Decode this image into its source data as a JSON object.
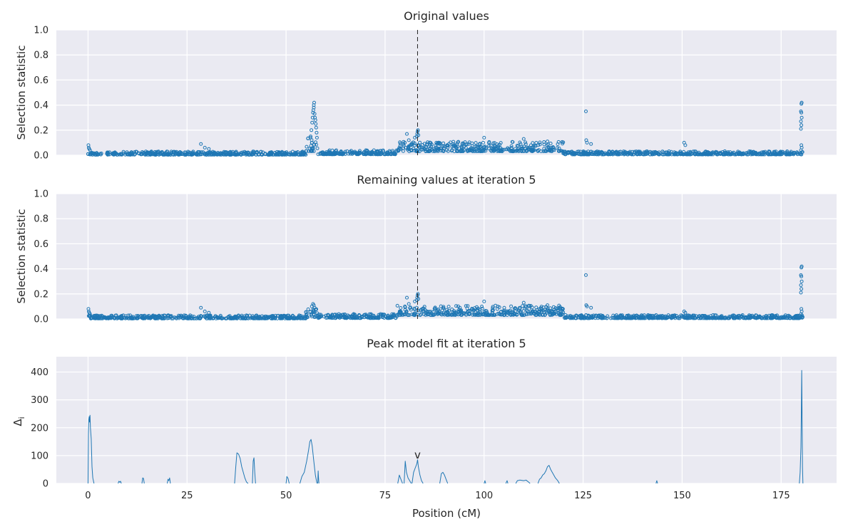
{
  "chart_data": [
    {
      "type": "scatter",
      "title": "Original values",
      "xlabel": "",
      "ylabel": "Selection statistic",
      "xlim": [
        -8,
        189
      ],
      "ylim": [
        0,
        1.0
      ],
      "yticks": [
        0.0,
        0.2,
        0.4,
        0.6,
        0.8,
        1.0
      ],
      "ytick_labels": [
        "0.0",
        "0.2",
        "0.4",
        "0.6",
        "0.8",
        "1.0"
      ],
      "xticks": [
        0,
        25,
        50,
        75,
        100,
        125,
        150,
        175
      ],
      "grid": true,
      "marker": "open-circle",
      "vline_x": 83.2,
      "baseline_segments": [
        {
          "x": [
            0,
            55
          ],
          "level": 0.01,
          "spread": 0.012
        },
        {
          "x": [
            55,
            58
          ],
          "level": 0.06,
          "spread": 0.05
        },
        {
          "x": [
            58,
            78
          ],
          "level": 0.015,
          "spread": 0.015
        },
        {
          "x": [
            78,
            120
          ],
          "level": 0.05,
          "spread": 0.035
        },
        {
          "x": [
            120,
            180.5
          ],
          "level": 0.012,
          "spread": 0.012
        }
      ],
      "highlights": [
        [
          0.1,
          0.08
        ],
        [
          0.2,
          0.06
        ],
        [
          0.3,
          0.05
        ],
        [
          0.5,
          0.04
        ],
        [
          28.5,
          0.09
        ],
        [
          29.5,
          0.06
        ],
        [
          30.5,
          0.05
        ],
        [
          56.2,
          0.15
        ],
        [
          56.4,
          0.2
        ],
        [
          56.6,
          0.26
        ],
        [
          56.7,
          0.3
        ],
        [
          56.8,
          0.34
        ],
        [
          56.9,
          0.36
        ],
        [
          57.0,
          0.38
        ],
        [
          57.0,
          0.4
        ],
        [
          57.1,
          0.42
        ],
        [
          57.2,
          0.33
        ],
        [
          57.3,
          0.3
        ],
        [
          57.4,
          0.28
        ],
        [
          57.5,
          0.25
        ],
        [
          57.6,
          0.22
        ],
        [
          57.7,
          0.18
        ],
        [
          57.8,
          0.14
        ],
        [
          80.0,
          0.1
        ],
        [
          80.5,
          0.17
        ],
        [
          81.0,
          0.12
        ],
        [
          82.5,
          0.14
        ],
        [
          83.0,
          0.15
        ],
        [
          83.1,
          0.17
        ],
        [
          83.2,
          0.19
        ],
        [
          83.3,
          0.2
        ],
        [
          83.4,
          0.16
        ],
        [
          100.0,
          0.14
        ],
        [
          110.0,
          0.13
        ],
        [
          116.0,
          0.11
        ],
        [
          125.7,
          0.35
        ],
        [
          125.8,
          0.12
        ],
        [
          126.0,
          0.1
        ],
        [
          127.0,
          0.09
        ],
        [
          150.5,
          0.1
        ],
        [
          150.8,
          0.08
        ],
        [
          180.1,
          0.41
        ],
        [
          180.2,
          0.42
        ],
        [
          180.0,
          0.35
        ],
        [
          180.1,
          0.34
        ],
        [
          180.2,
          0.3
        ],
        [
          180.0,
          0.27
        ],
        [
          180.1,
          0.24
        ],
        [
          180.0,
          0.21
        ],
        [
          180.1,
          0.08
        ],
        [
          180.2,
          0.06
        ],
        [
          180.0,
          0.04
        ]
      ]
    },
    {
      "type": "scatter",
      "title": "Remaining values at iteration 5",
      "xlabel": "",
      "ylabel": "Selection statistic",
      "xlim": [
        -8,
        189
      ],
      "ylim": [
        0,
        1.0
      ],
      "yticks": [
        0.0,
        0.2,
        0.4,
        0.6,
        0.8,
        1.0
      ],
      "ytick_labels": [
        "0.0",
        "0.2",
        "0.4",
        "0.6",
        "0.8",
        "1.0"
      ],
      "xticks": [
        0,
        25,
        50,
        75,
        100,
        125,
        150,
        175
      ],
      "grid": true,
      "marker": "open-circle",
      "vline_x": 83.2,
      "baseline_segments": [
        {
          "x": [
            0,
            55
          ],
          "level": 0.01,
          "spread": 0.012
        },
        {
          "x": [
            55,
            58
          ],
          "level": 0.03,
          "spread": 0.03
        },
        {
          "x": [
            58,
            78
          ],
          "level": 0.015,
          "spread": 0.015
        },
        {
          "x": [
            78,
            120
          ],
          "level": 0.05,
          "spread": 0.035
        },
        {
          "x": [
            120,
            180.5
          ],
          "level": 0.012,
          "spread": 0.012
        }
      ],
      "highlights": [
        [
          0.1,
          0.08
        ],
        [
          0.2,
          0.06
        ],
        [
          0.3,
          0.05
        ],
        [
          0.5,
          0.04
        ],
        [
          28.5,
          0.09
        ],
        [
          29.5,
          0.06
        ],
        [
          30.5,
          0.05
        ],
        [
          56.5,
          0.1
        ],
        [
          56.8,
          0.12
        ],
        [
          57.0,
          0.11
        ],
        [
          57.2,
          0.09
        ],
        [
          80.0,
          0.1
        ],
        [
          80.5,
          0.17
        ],
        [
          81.0,
          0.12
        ],
        [
          82.5,
          0.14
        ],
        [
          83.0,
          0.15
        ],
        [
          83.1,
          0.17
        ],
        [
          83.2,
          0.19
        ],
        [
          83.3,
          0.2
        ],
        [
          83.4,
          0.16
        ],
        [
          100.0,
          0.14
        ],
        [
          110.0,
          0.13
        ],
        [
          116.0,
          0.11
        ],
        [
          125.7,
          0.35
        ],
        [
          125.8,
          0.11
        ],
        [
          126.0,
          0.1
        ],
        [
          127.0,
          0.09
        ],
        [
          150.5,
          0.06
        ],
        [
          150.8,
          0.05
        ],
        [
          180.1,
          0.41
        ],
        [
          180.2,
          0.42
        ],
        [
          180.0,
          0.35
        ],
        [
          180.1,
          0.34
        ],
        [
          180.2,
          0.3
        ],
        [
          180.0,
          0.27
        ],
        [
          180.1,
          0.24
        ],
        [
          180.0,
          0.21
        ],
        [
          180.1,
          0.08
        ],
        [
          180.2,
          0.06
        ],
        [
          180.0,
          0.04
        ]
      ]
    },
    {
      "type": "line",
      "title": "Peak model fit at iteration 5",
      "xlabel": "Position (cM)",
      "ylabel": "Δi",
      "ylabel_main": "Δ",
      "ylabel_sub": "i",
      "xlim": [
        -8,
        189
      ],
      "ylim": [
        0,
        455
      ],
      "yticks": [
        0,
        100,
        200,
        300,
        400
      ],
      "ytick_labels": [
        "0",
        "100",
        "200",
        "300",
        "400"
      ],
      "xticks": [
        0,
        25,
        50,
        75,
        100,
        125,
        150,
        175
      ],
      "xtick_labels": [
        "0",
        "25",
        "50",
        "75",
        "100",
        "125",
        "150",
        "175"
      ],
      "grid": true,
      "marker_text": "v",
      "marker_x": 83.2,
      "marker_y": 100,
      "segments": [
        [
          [
            0.0,
            0
          ],
          [
            0.1,
            180
          ],
          [
            0.2,
            230
          ],
          [
            0.3,
            240
          ],
          [
            0.4,
            220
          ],
          [
            0.5,
            245
          ],
          [
            0.6,
            200
          ],
          [
            0.8,
            160
          ],
          [
            1.0,
            60
          ],
          [
            1.2,
            20
          ],
          [
            1.5,
            0
          ]
        ],
        [
          [
            7.6,
            0
          ],
          [
            7.8,
            8
          ],
          [
            8.0,
            4
          ],
          [
            8.2,
            8
          ],
          [
            8.4,
            0
          ]
        ],
        [
          [
            13.6,
            0
          ],
          [
            13.8,
            20
          ],
          [
            14.0,
            18
          ],
          [
            14.2,
            0
          ]
        ],
        [
          [
            20.0,
            0
          ],
          [
            20.2,
            15
          ],
          [
            20.4,
            10
          ],
          [
            20.6,
            20
          ],
          [
            20.8,
            0
          ]
        ],
        [
          [
            37.0,
            0
          ],
          [
            37.3,
            60
          ],
          [
            37.6,
            110
          ],
          [
            38.0,
            105
          ],
          [
            38.4,
            90
          ],
          [
            38.8,
            60
          ],
          [
            39.2,
            40
          ],
          [
            39.6,
            20
          ],
          [
            40.0,
            5
          ],
          [
            40.4,
            0
          ]
        ],
        [
          [
            41.5,
            0
          ],
          [
            41.7,
            80
          ],
          [
            41.9,
            92
          ],
          [
            42.1,
            40
          ],
          [
            42.3,
            0
          ]
        ],
        [
          [
            50.0,
            0
          ],
          [
            50.2,
            25
          ],
          [
            50.5,
            18
          ],
          [
            50.8,
            0
          ]
        ],
        [
          [
            53.5,
            0
          ],
          [
            54.0,
            25
          ],
          [
            54.6,
            40
          ],
          [
            55.2,
            80
          ],
          [
            55.7,
            120
          ],
          [
            56.0,
            150
          ],
          [
            56.3,
            158
          ],
          [
            56.6,
            135
          ],
          [
            57.0,
            80
          ],
          [
            57.4,
            30
          ],
          [
            57.8,
            0
          ]
        ],
        [
          [
            58.0,
            0
          ],
          [
            58.1,
            45
          ],
          [
            58.2,
            20
          ],
          [
            58.3,
            0
          ]
        ],
        [
          [
            78.2,
            0
          ],
          [
            78.6,
            30
          ],
          [
            79.0,
            15
          ],
          [
            79.4,
            0
          ]
        ],
        [
          [
            79.8,
            0
          ],
          [
            80.1,
            80
          ],
          [
            80.4,
            40
          ],
          [
            80.8,
            20
          ],
          [
            81.2,
            10
          ],
          [
            81.6,
            0
          ]
        ],
        [
          [
            81.8,
            0
          ],
          [
            82.2,
            40
          ],
          [
            82.6,
            55
          ],
          [
            83.0,
            70
          ],
          [
            83.2,
            85
          ],
          [
            83.4,
            60
          ],
          [
            83.8,
            30
          ],
          [
            84.2,
            10
          ],
          [
            84.6,
            0
          ]
        ],
        [
          [
            88.8,
            0
          ],
          [
            89.2,
            35
          ],
          [
            89.6,
            40
          ],
          [
            90.0,
            30
          ],
          [
            90.4,
            15
          ],
          [
            90.8,
            0
          ]
        ],
        [
          [
            100.0,
            0
          ],
          [
            100.2,
            10
          ],
          [
            100.4,
            0
          ]
        ],
        [
          [
            105.5,
            0
          ],
          [
            105.8,
            10
          ],
          [
            106.0,
            0
          ]
        ],
        [
          [
            108.0,
            0
          ],
          [
            108.4,
            10
          ],
          [
            109.0,
            12
          ],
          [
            110.0,
            10
          ],
          [
            110.6,
            12
          ],
          [
            111.2,
            5
          ],
          [
            111.6,
            0
          ]
        ],
        [
          [
            113.6,
            0
          ],
          [
            114.0,
            15
          ],
          [
            114.4,
            20
          ],
          [
            114.8,
            30
          ],
          [
            115.2,
            35
          ],
          [
            115.6,
            45
          ],
          [
            116.0,
            60
          ],
          [
            116.4,
            65
          ],
          [
            116.8,
            50
          ],
          [
            117.2,
            40
          ],
          [
            117.6,
            30
          ],
          [
            118.0,
            20
          ],
          [
            118.6,
            10
          ],
          [
            119.0,
            0
          ]
        ],
        [
          [
            143.4,
            0
          ],
          [
            143.6,
            10
          ],
          [
            143.8,
            0
          ]
        ],
        [
          [
            179.6,
            0
          ],
          [
            179.8,
            40
          ],
          [
            180.0,
            130
          ],
          [
            180.1,
            260
          ],
          [
            180.2,
            406
          ],
          [
            180.3,
            220
          ],
          [
            180.4,
            60
          ],
          [
            180.5,
            0
          ]
        ]
      ]
    }
  ]
}
